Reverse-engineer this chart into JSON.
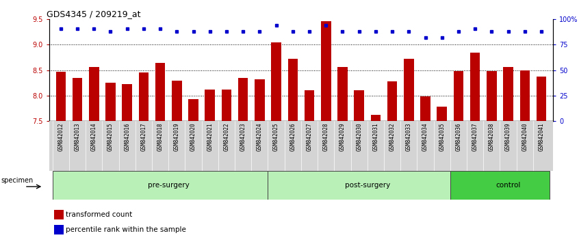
{
  "title": "GDS4345 / 209219_at",
  "categories": [
    "GSM842012",
    "GSM842013",
    "GSM842014",
    "GSM842015",
    "GSM842016",
    "GSM842017",
    "GSM842018",
    "GSM842019",
    "GSM842020",
    "GSM842021",
    "GSM842022",
    "GSM842023",
    "GSM842024",
    "GSM842025",
    "GSM842026",
    "GSM842027",
    "GSM842028",
    "GSM842029",
    "GSM842030",
    "GSM842031",
    "GSM842032",
    "GSM842033",
    "GSM842034",
    "GSM842035",
    "GSM842036",
    "GSM842037",
    "GSM842038",
    "GSM842039",
    "GSM842040",
    "GSM842041"
  ],
  "red_values": [
    8.47,
    8.35,
    8.56,
    8.25,
    8.22,
    8.46,
    8.65,
    8.3,
    7.93,
    8.12,
    8.12,
    8.35,
    8.32,
    9.05,
    8.73,
    8.1,
    9.47,
    8.56,
    8.1,
    7.62,
    8.28,
    8.73,
    7.98,
    7.78,
    8.48,
    8.85,
    8.48,
    8.56,
    8.5,
    8.37
  ],
  "blue_values": [
    91,
    91,
    91,
    88,
    91,
    91,
    91,
    88,
    88,
    88,
    88,
    88,
    88,
    94,
    88,
    88,
    94,
    88,
    88,
    88,
    88,
    88,
    82,
    82,
    88,
    91,
    88,
    88,
    88,
    88
  ],
  "ylim_left": [
    7.5,
    9.5
  ],
  "ylim_right": [
    0,
    100
  ],
  "yticks_left": [
    7.5,
    8.0,
    8.5,
    9.0,
    9.5
  ],
  "yticks_right": [
    0,
    25,
    50,
    75,
    100
  ],
  "ytick_labels_right": [
    "0",
    "25",
    "50",
    "75",
    "100%"
  ],
  "bar_bottom": 7.5,
  "bar_color": "#BB0000",
  "dot_color": "#0000CC",
  "specimen_label": "specimen",
  "legend_items": [
    {
      "color": "#BB0000",
      "label": "transformed count"
    },
    {
      "color": "#0000CC",
      "label": "percentile rank within the sample"
    }
  ],
  "background_color": "#ffffff",
  "xtick_bg": "#d4d4d4",
  "bar_width": 0.6,
  "group_boundaries": [
    0,
    13,
    24,
    30
  ],
  "group_labels": [
    "pre-surgery",
    "post-surgery",
    "control"
  ],
  "group_colors": [
    "#b8f0b8",
    "#b8f0b8",
    "#44cc44"
  ]
}
